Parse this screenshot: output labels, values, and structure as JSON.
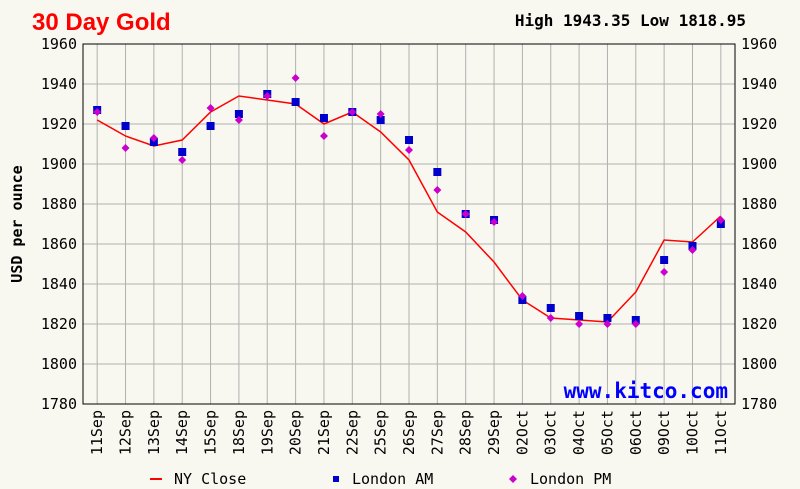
{
  "header": {
    "title": "30 Day Gold",
    "high_low": "High 1943.35 Low 1818.95"
  },
  "watermark": "www.kitco.com",
  "colors": {
    "title": "#ff0000",
    "line": "#ff0000",
    "am": "#0000cc",
    "pm": "#cc00cc",
    "grid": "#b0b0b0",
    "watermark": "#0000ff"
  },
  "chart_data": {
    "type": "line",
    "ylabel": "USD per ounce",
    "xlabel": "",
    "ylim": [
      1780,
      1960
    ],
    "yticks": [
      1780,
      1800,
      1820,
      1840,
      1860,
      1880,
      1900,
      1920,
      1940,
      1960
    ],
    "grid": true,
    "legend_position": "bottom",
    "categories": [
      "11Sep",
      "12Sep",
      "13Sep",
      "14Sep",
      "15Sep",
      "18Sep",
      "19Sep",
      "20Sep",
      "21Sep",
      "22Sep",
      "25Sep",
      "26Sep",
      "27Sep",
      "28Sep",
      "29Sep",
      "02Oct",
      "03Oct",
      "04Oct",
      "05Oct",
      "06Oct",
      "09Oct",
      "10Oct",
      "11Oct"
    ],
    "series": [
      {
        "name": "NY Close",
        "style": "line",
        "values": [
          1922,
          1914,
          1909,
          1912,
          1926,
          1934,
          1932,
          1930,
          1920,
          1926,
          1916,
          1902,
          1876,
          1866,
          1851,
          1832,
          1823,
          1822,
          1821,
          1836,
          1862,
          1861,
          1874
        ]
      },
      {
        "name": "London AM",
        "style": "square",
        "values": [
          1927,
          1919,
          1911,
          1906,
          1919,
          1925,
          1935,
          1931,
          1923,
          1926,
          1922,
          1912,
          1896,
          1875,
          1872,
          1832,
          1828,
          1824,
          1823,
          1822,
          1852,
          1859,
          1870
        ]
      },
      {
        "name": "London PM",
        "style": "diamond",
        "values": [
          1926,
          1908,
          1913,
          1902,
          1928,
          1922,
          1934,
          1943,
          1914,
          1926,
          1925,
          1907,
          1887,
          1875,
          1871,
          1834,
          1823,
          1820,
          1820,
          1820,
          1846,
          1857,
          1872
        ]
      }
    ]
  }
}
